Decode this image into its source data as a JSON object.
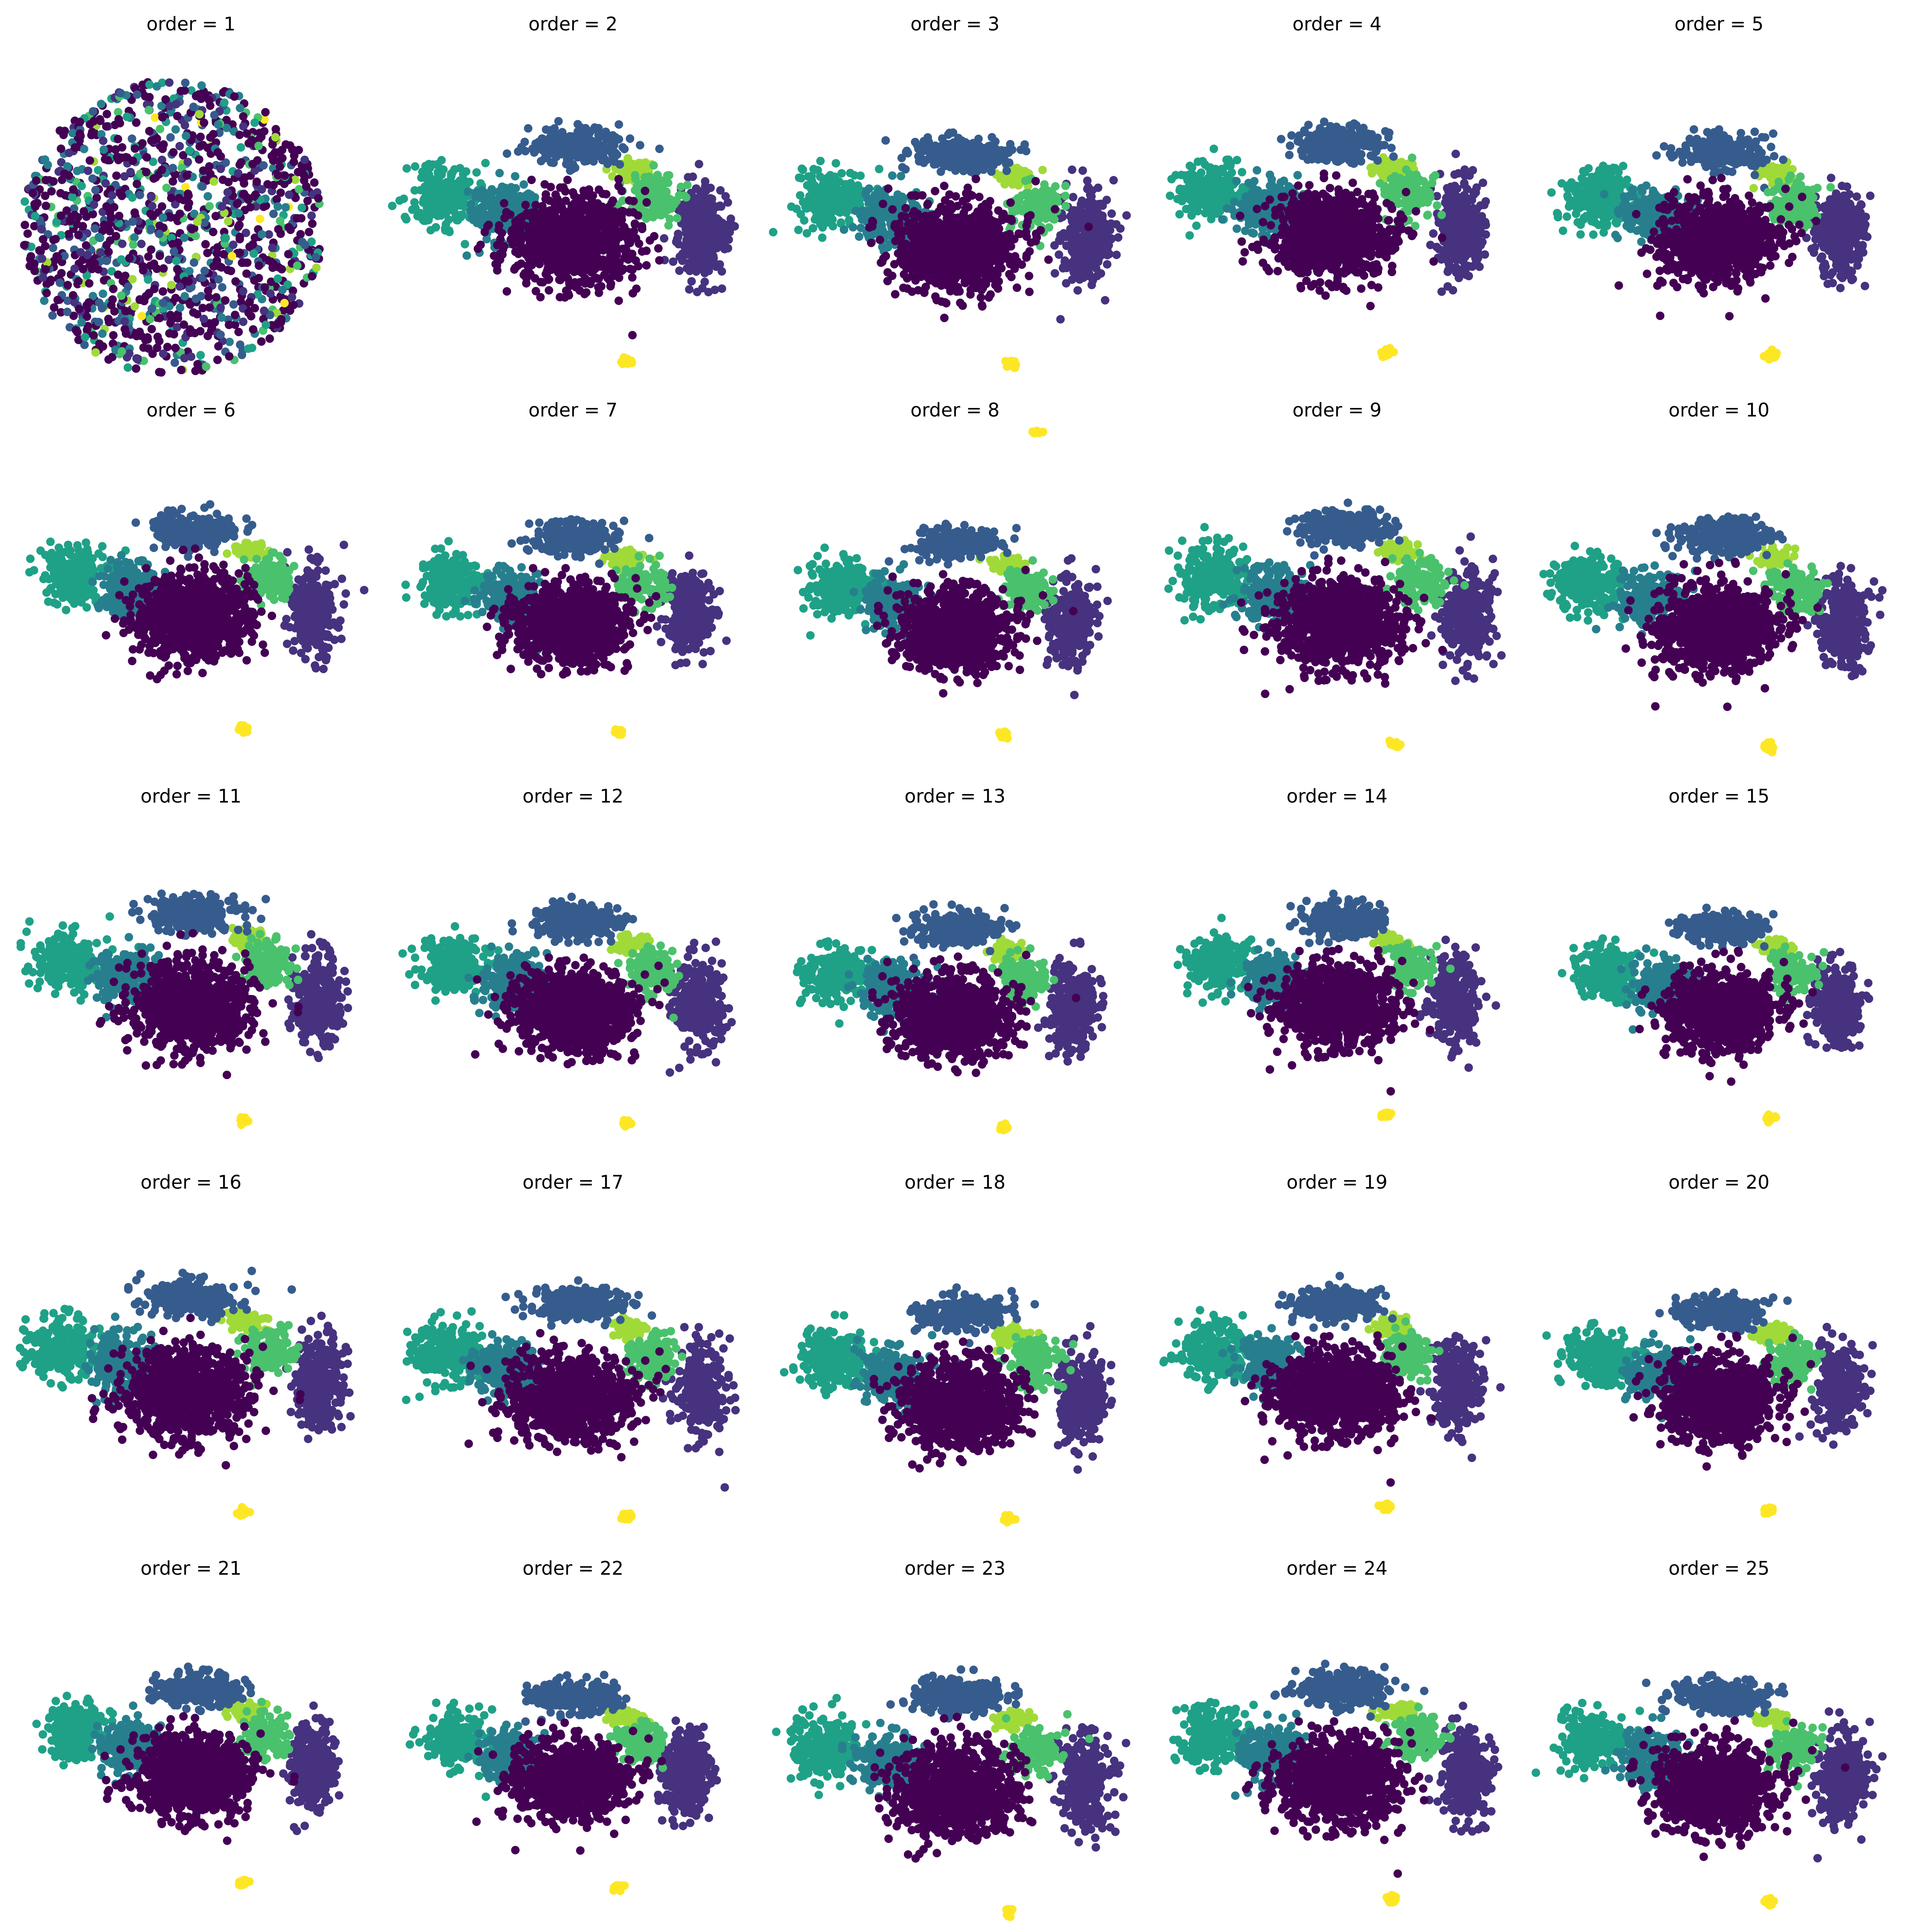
{
  "colors": {
    "c0": "#440154",
    "c1": "#46327e",
    "c2": "#365c8d",
    "c3": "#277f8e",
    "c4": "#1fa187",
    "c5": "#4ac16d",
    "c6": "#a0da39",
    "c7": "#fde725"
  },
  "chart_data": [
    {
      "type": "scatter",
      "title": "order = 1",
      "x": [],
      "y": [],
      "axes": "off"
    },
    {
      "type": "scatter",
      "title": "order = 2",
      "x": [],
      "y": [],
      "axes": "off"
    },
    {
      "type": "scatter",
      "title": "order = 3",
      "x": [],
      "y": [],
      "axes": "off"
    },
    {
      "type": "scatter",
      "title": "order = 4",
      "x": [],
      "y": [],
      "axes": "off"
    },
    {
      "type": "scatter",
      "title": "order = 5",
      "x": [],
      "y": [],
      "axes": "off"
    },
    {
      "type": "scatter",
      "title": "order = 6",
      "x": [],
      "y": [],
      "axes": "off"
    },
    {
      "type": "scatter",
      "title": "order = 7",
      "x": [],
      "y": [],
      "axes": "off"
    },
    {
      "type": "scatter",
      "title": "order = 8",
      "x": [],
      "y": [],
      "axes": "off"
    },
    {
      "type": "scatter",
      "title": "order = 9",
      "x": [],
      "y": [],
      "axes": "off"
    },
    {
      "type": "scatter",
      "title": "order = 10",
      "x": [],
      "y": [],
      "axes": "off"
    },
    {
      "type": "scatter",
      "title": "order = 11",
      "x": [],
      "y": [],
      "axes": "off"
    },
    {
      "type": "scatter",
      "title": "order = 12",
      "x": [],
      "y": [],
      "axes": "off"
    },
    {
      "type": "scatter",
      "title": "order = 13",
      "x": [],
      "y": [],
      "axes": "off"
    },
    {
      "type": "scatter",
      "title": "order = 14",
      "x": [],
      "y": [],
      "axes": "off"
    },
    {
      "type": "scatter",
      "title": "order = 15",
      "x": [],
      "y": [],
      "axes": "off"
    },
    {
      "type": "scatter",
      "title": "order = 16",
      "x": [],
      "y": [],
      "axes": "off"
    },
    {
      "type": "scatter",
      "title": "order = 17",
      "x": [],
      "y": [],
      "axes": "off"
    },
    {
      "type": "scatter",
      "title": "order = 18",
      "x": [],
      "y": [],
      "axes": "off"
    },
    {
      "type": "scatter",
      "title": "order = 19",
      "x": [],
      "y": [],
      "axes": "off"
    },
    {
      "type": "scatter",
      "title": "order = 20",
      "x": [],
      "y": [],
      "axes": "off"
    },
    {
      "type": "scatter",
      "title": "order = 21",
      "x": [],
      "y": [],
      "axes": "off"
    },
    {
      "type": "scatter",
      "title": "order = 22",
      "x": [],
      "y": [],
      "axes": "off"
    },
    {
      "type": "scatter",
      "title": "order = 23",
      "x": [],
      "y": [],
      "axes": "off"
    },
    {
      "type": "scatter",
      "title": "order = 24",
      "x": [],
      "y": [],
      "axes": "off"
    },
    {
      "type": "scatter",
      "title": "order = 25",
      "x": [],
      "y": [],
      "axes": "off"
    }
  ]
}
